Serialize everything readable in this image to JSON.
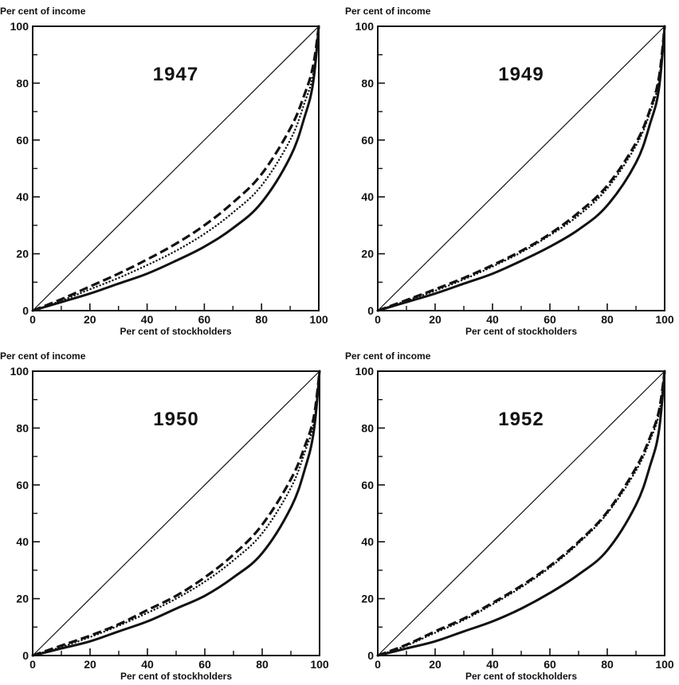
{
  "chart_data": [
    {
      "type": "line",
      "title": "1947",
      "xlabel": "Per cent of stockholders",
      "ylabel": "Per cent of income",
      "xlim": [
        0,
        100
      ],
      "ylim": [
        0,
        100
      ],
      "xticks": [
        0,
        20,
        40,
        60,
        80,
        100
      ],
      "yticks": [
        0,
        20,
        40,
        60,
        80,
        100
      ],
      "grid": false,
      "legend": "none",
      "x": [
        0,
        10,
        20,
        30,
        40,
        50,
        60,
        70,
        80,
        90,
        95,
        98,
        100
      ],
      "series": [
        {
          "style": "diagonal",
          "values": [
            0,
            10,
            20,
            30,
            40,
            50,
            60,
            70,
            80,
            90,
            95,
            98,
            100
          ]
        },
        {
          "style": "solid",
          "values": [
            0,
            3,
            6,
            9.5,
            13,
            17.5,
            22.5,
            29,
            38,
            54,
            68,
            80,
            100
          ]
        },
        {
          "style": "dotted",
          "values": [
            0,
            3.5,
            7.5,
            11.5,
            16,
            21,
            27,
            34.5,
            44,
            60,
            73,
            83,
            100
          ]
        },
        {
          "style": "dashed",
          "values": [
            0,
            4,
            8.5,
            13,
            18,
            23.5,
            30,
            38,
            48,
            64,
            76,
            86,
            100
          ]
        }
      ]
    },
    {
      "type": "line",
      "title": "1949",
      "xlabel": "Per cent of stockholders",
      "ylabel": "Per cent of income",
      "xlim": [
        0,
        100
      ],
      "ylim": [
        0,
        100
      ],
      "xticks": [
        0,
        20,
        40,
        60,
        80,
        100
      ],
      "yticks": [
        0,
        20,
        40,
        60,
        80,
        100
      ],
      "grid": false,
      "legend": "none",
      "x": [
        0,
        10,
        20,
        30,
        40,
        50,
        60,
        70,
        80,
        90,
        95,
        98,
        100
      ],
      "series": [
        {
          "style": "diagonal",
          "values": [
            0,
            10,
            20,
            30,
            40,
            50,
            60,
            70,
            80,
            90,
            95,
            98,
            100
          ]
        },
        {
          "style": "solid",
          "values": [
            0,
            3,
            6,
            9.5,
            13,
            17.5,
            22.5,
            28.5,
            37,
            52,
            66,
            78,
            100
          ]
        },
        {
          "style": "dotted",
          "values": [
            0,
            3.5,
            7,
            11,
            15.5,
            20.5,
            26.5,
            33.5,
            43,
            58,
            70,
            81,
            100
          ]
        },
        {
          "style": "dashed",
          "values": [
            0,
            3.7,
            7.5,
            11.5,
            16,
            21,
            27,
            34.5,
            44,
            59,
            71,
            82,
            100
          ]
        }
      ]
    },
    {
      "type": "line",
      "title": "1950",
      "xlabel": "Per cent of stockholders",
      "ylabel": "Per cent of income",
      "xlim": [
        0,
        100
      ],
      "ylim": [
        0,
        100
      ],
      "xticks": [
        0,
        20,
        40,
        60,
        80,
        100
      ],
      "yticks": [
        0,
        20,
        40,
        60,
        80,
        100
      ],
      "grid": false,
      "legend": "none",
      "x": [
        0,
        10,
        20,
        30,
        40,
        50,
        60,
        70,
        80,
        90,
        95,
        98,
        100
      ],
      "series": [
        {
          "style": "diagonal",
          "values": [
            0,
            10,
            20,
            30,
            40,
            50,
            60,
            70,
            80,
            90,
            95,
            98,
            100
          ]
        },
        {
          "style": "solid",
          "values": [
            0,
            2.5,
            5,
            8.5,
            12,
            16.5,
            21,
            27.5,
            36,
            52,
            66,
            79,
            100
          ]
        },
        {
          "style": "dotted",
          "values": [
            0,
            3,
            6.5,
            10.5,
            15,
            20,
            26,
            33.5,
            43,
            59,
            72,
            82,
            100
          ]
        },
        {
          "style": "dashed",
          "values": [
            0,
            3.5,
            7,
            11,
            16,
            21,
            27.5,
            35.5,
            46,
            62,
            74,
            84,
            100
          ]
        }
      ]
    },
    {
      "type": "line",
      "title": "1952",
      "xlabel": "Per cent of stockholders",
      "ylabel": "Per cent of income",
      "xlim": [
        0,
        100
      ],
      "ylim": [
        0,
        100
      ],
      "xticks": [
        0,
        20,
        40,
        60,
        80,
        100
      ],
      "yticks": [
        0,
        20,
        40,
        60,
        80,
        100
      ],
      "grid": false,
      "legend": "none",
      "x": [
        0,
        10,
        20,
        30,
        40,
        50,
        60,
        70,
        80,
        90,
        95,
        98,
        100
      ],
      "series": [
        {
          "style": "solid",
          "values": [
            0,
            2.5,
            5,
            8.5,
            12,
            16.5,
            22,
            28.5,
            37,
            53,
            67,
            79,
            100
          ]
        },
        {
          "style": "dotted",
          "values": [
            0,
            3.5,
            8,
            12.5,
            18,
            24,
            31,
            39.5,
            50,
            65,
            76,
            85,
            100
          ]
        },
        {
          "style": "dashed",
          "values": [
            0,
            3.8,
            8.5,
            13,
            18.5,
            24.5,
            31.5,
            40,
            50.5,
            66,
            77,
            86,
            100
          ]
        },
        {
          "style": "diagonal",
          "values": [
            0,
            10,
            20,
            30,
            40,
            50,
            60,
            70,
            80,
            90,
            95,
            98,
            100
          ]
        }
      ]
    }
  ]
}
